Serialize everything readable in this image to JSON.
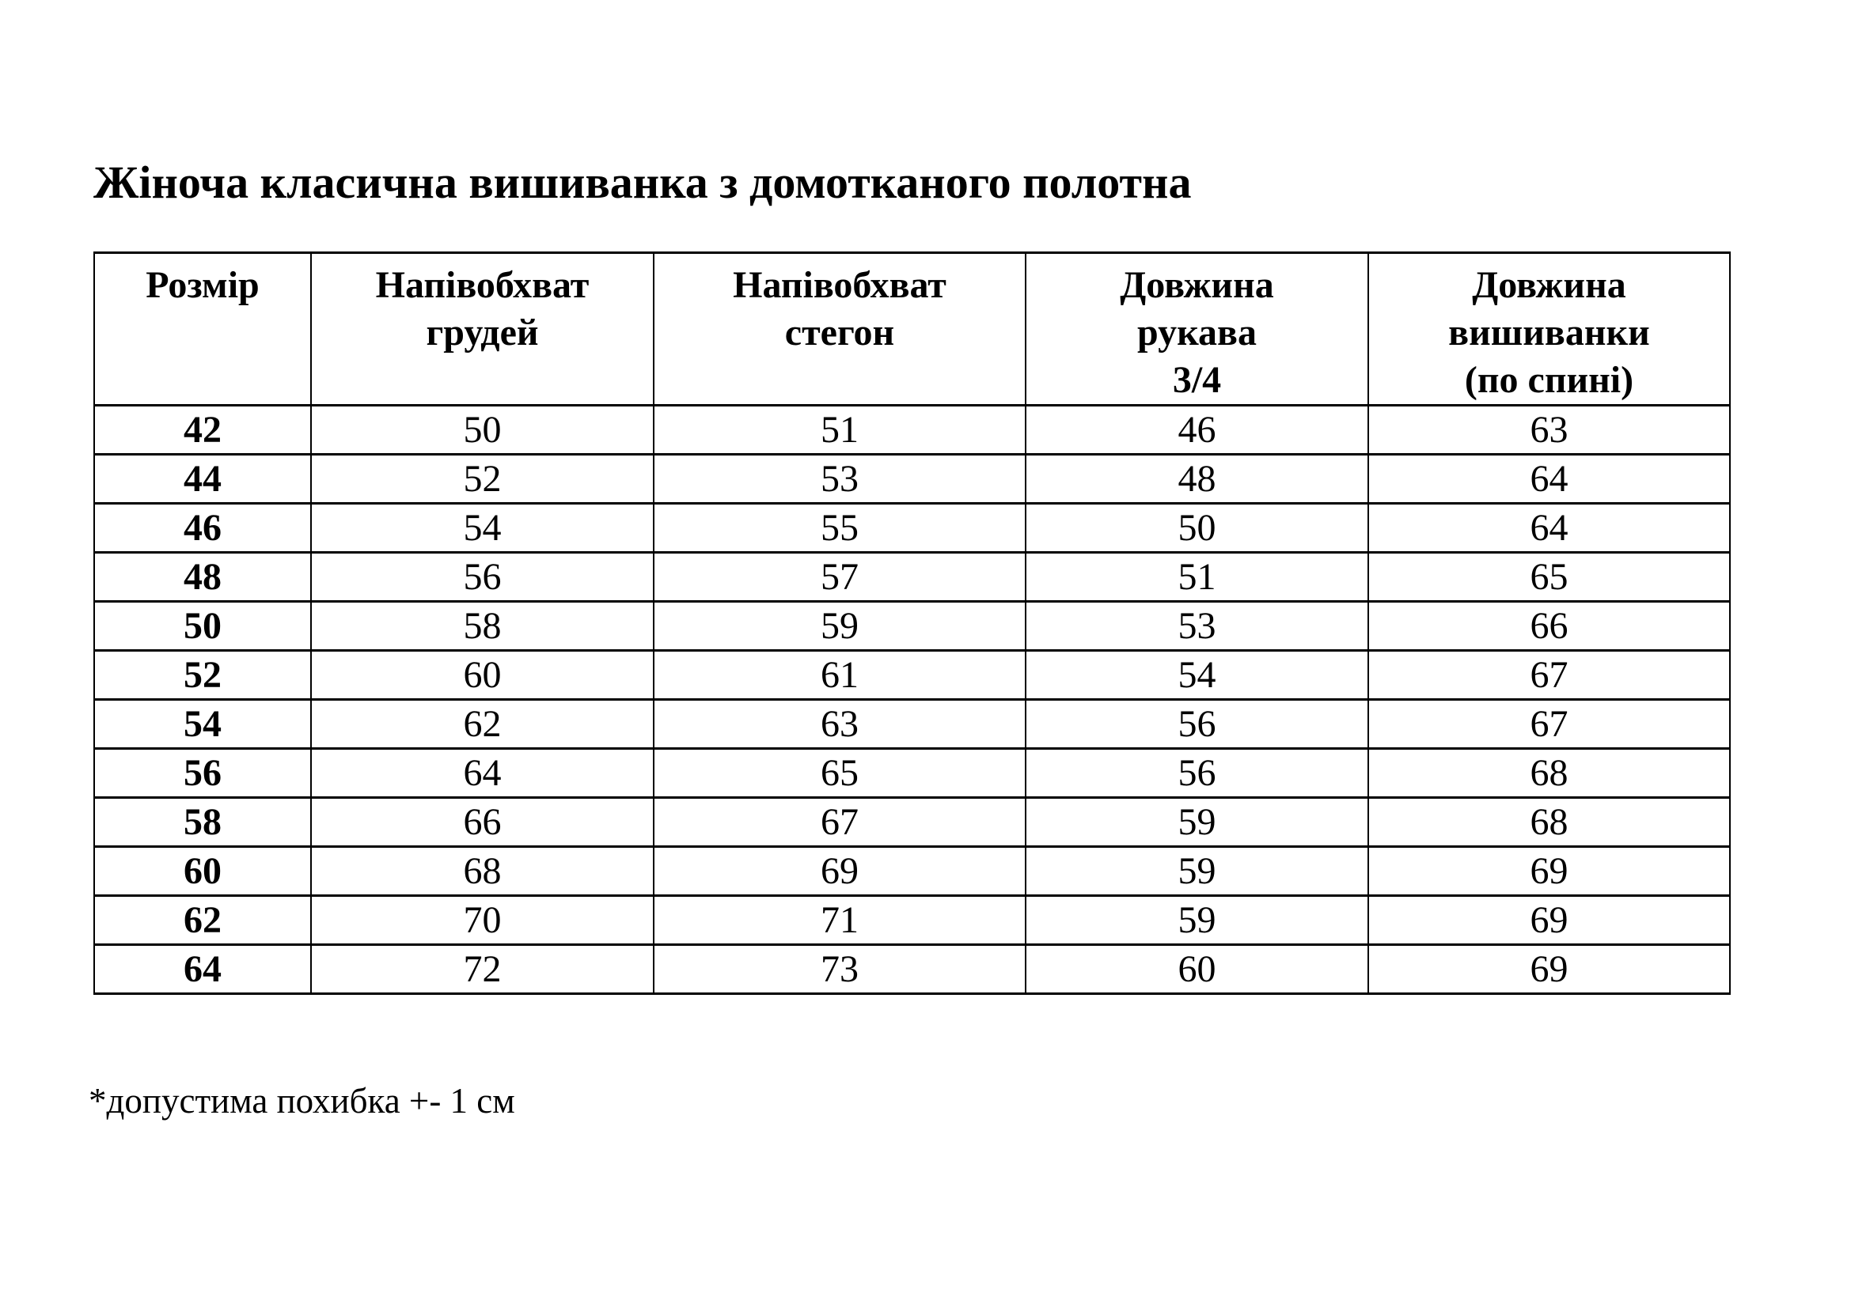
{
  "page": {
    "title": "Жіноча класична вишиванка з домотканого полотна",
    "footnote": "*допустима похибка +- 1 см"
  },
  "table": {
    "headers": [
      {
        "lines": [
          "Розмір"
        ]
      },
      {
        "lines": [
          "Напівобхват",
          "грудей"
        ]
      },
      {
        "lines": [
          "Напівобхват",
          "стегон"
        ]
      },
      {
        "lines": [
          "Довжина",
          "рукава",
          "3/4"
        ]
      },
      {
        "lines": [
          "Довжина",
          "вишиванки",
          "(по спині)"
        ]
      }
    ],
    "rows": [
      [
        "42",
        "50",
        "51",
        "46",
        "63"
      ],
      [
        "44",
        "52",
        "53",
        "48",
        "64"
      ],
      [
        "46",
        "54",
        "55",
        "50",
        "64"
      ],
      [
        "48",
        "56",
        "57",
        "51",
        "65"
      ],
      [
        "50",
        "58",
        "59",
        "53",
        "66"
      ],
      [
        "52",
        "60",
        "61",
        "54",
        "67"
      ],
      [
        "54",
        "62",
        "63",
        "56",
        "67"
      ],
      [
        "56",
        "64",
        "65",
        "56",
        "68"
      ],
      [
        "58",
        "66",
        "67",
        "59",
        "68"
      ],
      [
        "60",
        "68",
        "69",
        "59",
        "69"
      ],
      [
        "62",
        "70",
        "71",
        "59",
        "69"
      ],
      [
        "64",
        "72",
        "73",
        "60",
        "69"
      ]
    ]
  }
}
